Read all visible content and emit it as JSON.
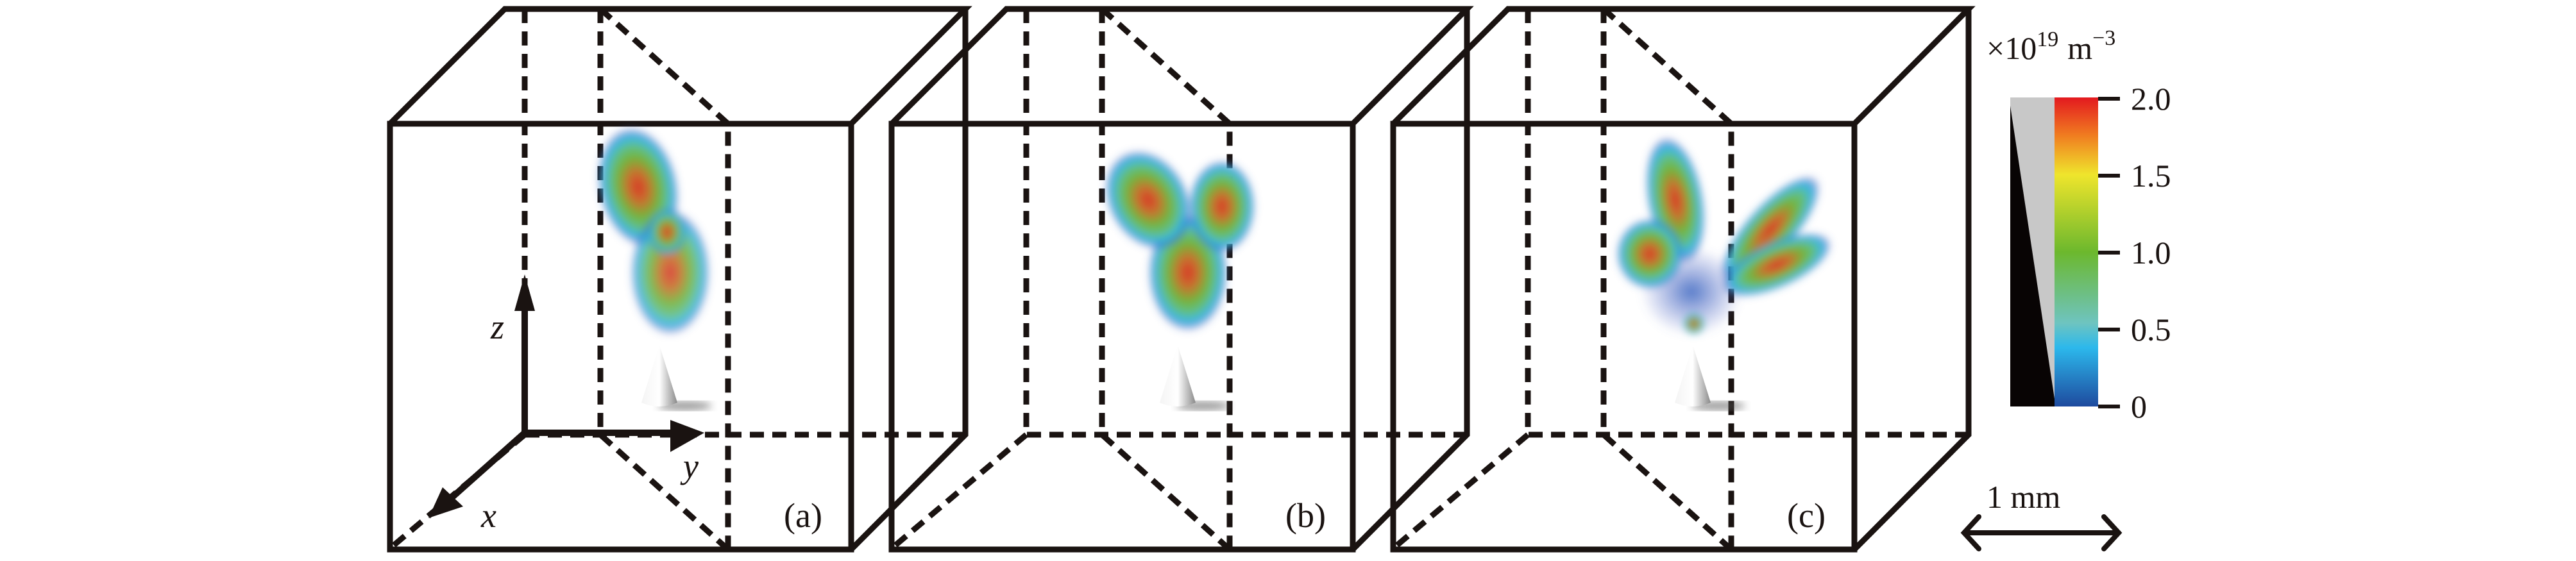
{
  "panels": [
    {
      "label": "(a)"
    },
    {
      "label": "(b)"
    },
    {
      "label": "(c)"
    }
  ],
  "axes": {
    "x": "x",
    "y": "y",
    "z": "z"
  },
  "colorbar": {
    "unit_prefix": "×10",
    "unit_exponent": "19",
    "unit_base": "m",
    "unit_base_exponent": "−3",
    "ticks": [
      "2.0",
      "1.5",
      "1.0",
      "0.5",
      "0"
    ],
    "colors": [
      "#e3191f",
      "#f07a20",
      "#efe52c",
      "#6cb82d",
      "#6ec4c0",
      "#2cb8ec",
      "#1e4a9e"
    ]
  },
  "scale_bar": {
    "label": "1 mm"
  }
}
